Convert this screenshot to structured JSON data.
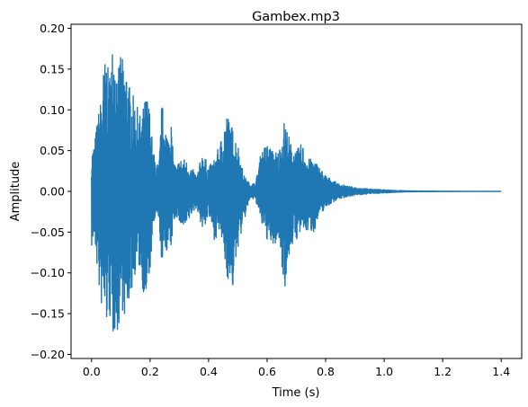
{
  "chart_data": {
    "type": "line",
    "title": "Gambex.mp3",
    "xlabel": "Time (s)",
    "ylabel": "Amplitude",
    "xlim": [
      -0.07,
      1.47
    ],
    "ylim": [
      -0.205,
      0.205
    ],
    "xticks": [
      0.0,
      0.2,
      0.4,
      0.6,
      0.8,
      1.0,
      1.2,
      1.4
    ],
    "xtick_labels": [
      "0.0",
      "0.2",
      "0.4",
      "0.6",
      "0.8",
      "1.0",
      "1.2",
      "1.4"
    ],
    "yticks": [
      0.2,
      0.15,
      0.1,
      0.05,
      0.0,
      -0.05,
      -0.1,
      -0.15,
      -0.2
    ],
    "ytick_labels": [
      "0.20",
      "0.15",
      "0.10",
      "0.05",
      "0.00",
      "−0.05",
      "−0.10",
      "−0.15",
      "−0.20"
    ],
    "grid": false,
    "series_color": "#1f77b4",
    "envelope": {
      "t": [
        0.0,
        0.01,
        0.02,
        0.03,
        0.04,
        0.05,
        0.06,
        0.07,
        0.08,
        0.09,
        0.1,
        0.11,
        0.12,
        0.13,
        0.14,
        0.15,
        0.16,
        0.17,
        0.18,
        0.19,
        0.2,
        0.21,
        0.22,
        0.23,
        0.24,
        0.25,
        0.26,
        0.27,
        0.28,
        0.29,
        0.3,
        0.32,
        0.34,
        0.36,
        0.38,
        0.4,
        0.42,
        0.44,
        0.46,
        0.48,
        0.5,
        0.52,
        0.54,
        0.56,
        0.58,
        0.6,
        0.62,
        0.64,
        0.66,
        0.68,
        0.7,
        0.72,
        0.74,
        0.76,
        0.78,
        0.8,
        0.82,
        0.84,
        0.86,
        0.88,
        0.9,
        0.95,
        1.0,
        1.05,
        1.1,
        1.2,
        1.3,
        1.4
      ],
      "upper": [
        0.05,
        0.06,
        0.09,
        0.11,
        0.15,
        0.17,
        0.14,
        0.18,
        0.19,
        0.14,
        0.18,
        0.15,
        0.16,
        0.13,
        0.12,
        0.11,
        0.1,
        0.09,
        0.11,
        0.12,
        0.1,
        0.05,
        0.04,
        0.03,
        0.11,
        0.09,
        0.07,
        0.1,
        0.04,
        0.03,
        0.04,
        0.04,
        0.03,
        0.02,
        0.05,
        0.03,
        0.04,
        0.06,
        0.1,
        0.08,
        0.06,
        0.02,
        0.01,
        0.01,
        0.05,
        0.06,
        0.05,
        0.05,
        0.09,
        0.06,
        0.05,
        0.06,
        0.04,
        0.04,
        0.03,
        0.02,
        0.015,
        0.01,
        0.008,
        0.006,
        0.005,
        0.003,
        0.002,
        0.001,
        0.0005,
        0.0002,
        0.0001,
        0.0
      ],
      "lower": [
        -0.07,
        -0.06,
        -0.1,
        -0.14,
        -0.15,
        -0.17,
        -0.15,
        -0.19,
        -0.17,
        -0.18,
        -0.14,
        -0.15,
        -0.17,
        -0.13,
        -0.12,
        -0.1,
        -0.09,
        -0.11,
        -0.13,
        -0.14,
        -0.1,
        -0.05,
        -0.03,
        -0.04,
        -0.09,
        -0.08,
        -0.07,
        -0.08,
        -0.04,
        -0.03,
        -0.04,
        -0.05,
        -0.03,
        -0.02,
        -0.05,
        -0.03,
        -0.06,
        -0.05,
        -0.1,
        -0.13,
        -0.07,
        -0.04,
        -0.01,
        -0.01,
        -0.04,
        -0.06,
        -0.07,
        -0.06,
        -0.12,
        -0.07,
        -0.06,
        -0.05,
        -0.05,
        -0.05,
        -0.03,
        -0.02,
        -0.015,
        -0.01,
        -0.008,
        -0.006,
        -0.005,
        -0.003,
        -0.002,
        -0.001,
        -0.0005,
        -0.0002,
        -0.0001,
        -0.0
      ]
    }
  }
}
